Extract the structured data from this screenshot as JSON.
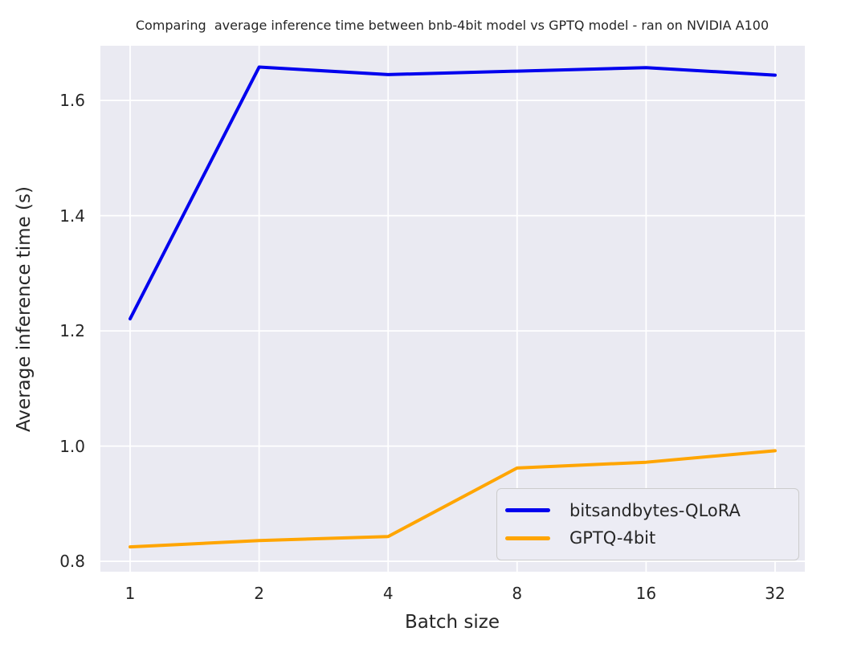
{
  "chart_data": {
    "type": "line",
    "title": "Comparing  average inference time between bnb-4bit model vs GPTQ model - ran on NVIDIA A100",
    "xlabel": "Batch size",
    "ylabel": "Average inference time (s)",
    "x_scale": "log2-categorical",
    "categories": [
      1,
      2,
      4,
      8,
      16,
      32
    ],
    "x_tick_labels": [
      "1",
      "2",
      "4",
      "8",
      "16",
      "32"
    ],
    "y_ticks": [
      0.8,
      1.0,
      1.2,
      1.4,
      1.6
    ],
    "y_tick_labels": [
      "0.8",
      "1.0",
      "1.2",
      "1.4",
      "1.6"
    ],
    "ylim": [
      0.782,
      1.695
    ],
    "grid": true,
    "legend_position": "lower right",
    "series": [
      {
        "name": "bitsandbytes-QLoRA",
        "color": "#0000ee",
        "values": [
          1.221,
          1.658,
          1.645,
          1.651,
          1.657,
          1.644
        ]
      },
      {
        "name": "GPTQ-4bit",
        "color": "#ffa500",
        "values": [
          0.825,
          0.836,
          0.843,
          0.962,
          0.972,
          0.992
        ]
      }
    ],
    "colors": {
      "plot_bg": "#eaeaf2",
      "grid": "#ffffff",
      "text": "#262626",
      "outer_bg": "#ffffff"
    }
  }
}
